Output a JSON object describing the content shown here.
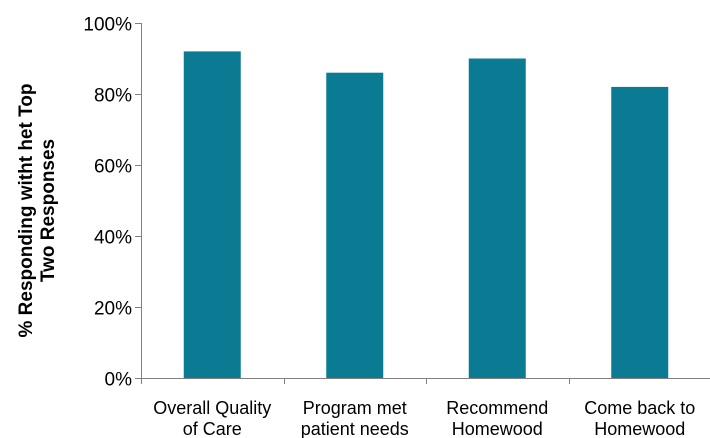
{
  "chart_data": {
    "type": "bar",
    "categories": [
      [
        "Overall Quality",
        "of Care"
      ],
      [
        "Program met",
        "patient needs"
      ],
      [
        "Recommend",
        "Homewood"
      ],
      [
        "Come back to",
        "Homewood"
      ]
    ],
    "values": [
      92,
      86,
      90,
      82
    ],
    "ylim": [
      0,
      100
    ],
    "yticks": [
      0,
      20,
      40,
      60,
      80,
      100
    ],
    "ytick_labels": [
      "0%",
      "20%",
      "40%",
      "60%",
      "80%",
      "100%"
    ],
    "ylabel": [
      "% Responding witht het Top",
      "Two Responses"
    ],
    "xlabel": "",
    "title": "",
    "bar_color": "#0b7b94",
    "grid": false,
    "legend": "none"
  }
}
